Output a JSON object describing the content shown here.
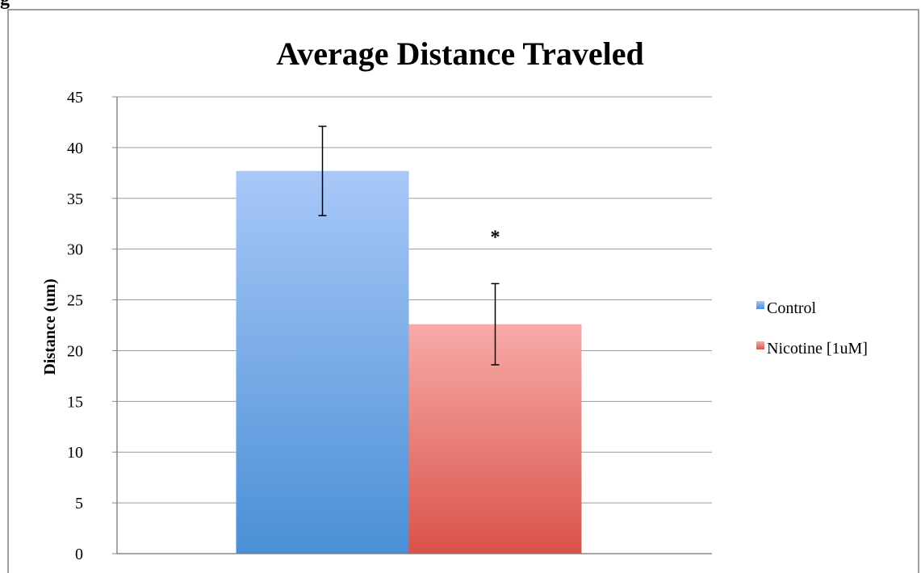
{
  "figure_label": "g",
  "chart_data": {
    "type": "bar",
    "title": "Average Distance Traveled",
    "xlabel": "",
    "ylabel": "Distance (um)",
    "ylim": [
      0,
      45
    ],
    "yticks": [
      0,
      5,
      10,
      15,
      20,
      25,
      30,
      35,
      40,
      45
    ],
    "grid": true,
    "legend_position": "right",
    "series": [
      {
        "name": "Control",
        "value": 37.7,
        "error": 4.4,
        "color_top": "#a8c8f8",
        "color_bottom": "#4a8fd6"
      },
      {
        "name": "Nicotine [1uM]",
        "value": 22.6,
        "error": 4.0,
        "color_top": "#f8aaa8",
        "color_bottom": "#d9534a"
      }
    ],
    "annotations": [
      {
        "text": "*",
        "series": "Nicotine [1uM]"
      }
    ]
  }
}
